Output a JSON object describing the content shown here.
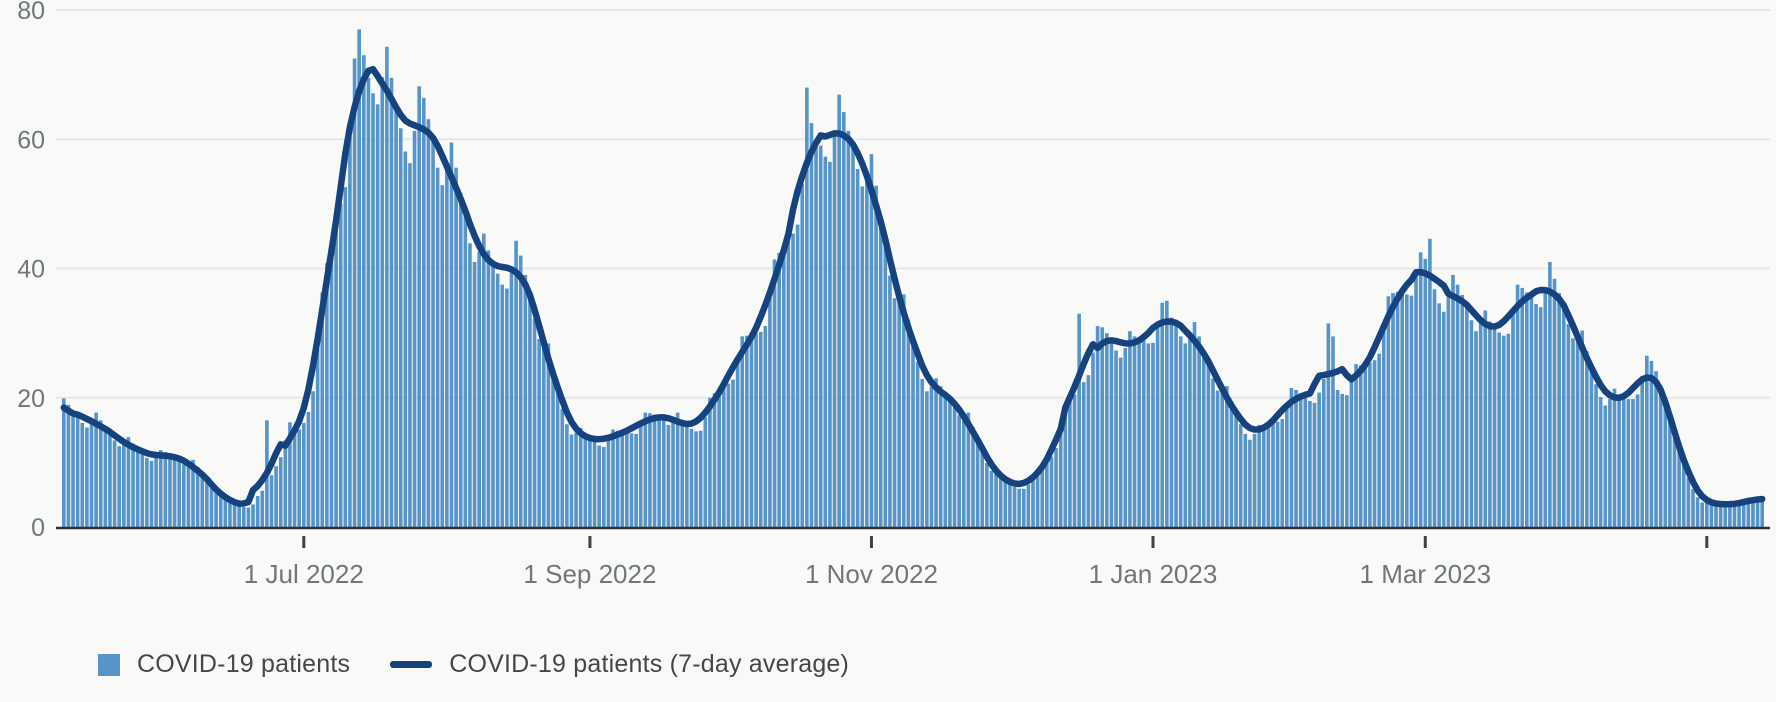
{
  "chart_data": {
    "type": "bar+line",
    "title": "",
    "xlabel": "",
    "ylabel": "",
    "ylim": [
      0,
      80
    ],
    "y_ticks": [
      0,
      20,
      40,
      60,
      80
    ],
    "grid": "horizontal",
    "legend_position": "bottom-left",
    "start_date": "2022-05-10",
    "x_ticks": [
      {
        "day": 52,
        "label": "1 Jul 2022"
      },
      {
        "day": 114,
        "label": "1 Sep 2022"
      },
      {
        "day": 175,
        "label": "1 Nov 2022"
      },
      {
        "day": 236,
        "label": "1 Jan 2023"
      },
      {
        "day": 295,
        "label": "1 Mar 2023"
      },
      {
        "day": 356,
        "label": ""
      }
    ],
    "series": [
      {
        "name": "COVID-19 patients",
        "type": "bar",
        "color": "#5694CA"
      },
      {
        "name": "COVID-19 patients (7-day average)",
        "type": "line",
        "color": "#16437E",
        "derivation": "7-day centered average of daily values"
      }
    ],
    "daily": [
      19.9,
      18.9,
      17.9,
      17.2,
      16.1,
      15.4,
      16.3,
      17.7,
      16.5,
      15.4,
      14.4,
      13.4,
      12.5,
      13.1,
      13.9,
      12.9,
      12.0,
      11.3,
      10.7,
      10.2,
      11.0,
      11.9,
      11.6,
      11.3,
      10.9,
      10.2,
      9.7,
      10.0,
      10.4,
      9.3,
      8.2,
      7.2,
      6.2,
      5.4,
      5.1,
      4.6,
      4.0,
      3.6,
      3.5,
      3.1,
      3.0,
      3.5,
      4.8,
      5.6,
      16.5,
      8.0,
      9.4,
      10.8,
      13.4,
      16.2,
      15.2,
      15.1,
      16.1,
      17.8,
      21.0,
      27.7,
      36.3,
      40.8,
      44.2,
      47.8,
      50.0,
      52.6,
      60.4,
      72.5,
      77.0,
      73.0,
      69.5,
      67.1,
      65.4,
      69.6,
      74.3,
      69.5,
      65.1,
      61.7,
      58.1,
      56.3,
      61.3,
      68.2,
      66.4,
      63.1,
      59.7,
      55.6,
      52.9,
      55.6,
      59.5,
      55.6,
      51.7,
      48.1,
      43.9,
      41.0,
      42.6,
      45.4,
      42.8,
      40.7,
      39.2,
      37.5,
      36.9,
      40.2,
      44.3,
      42.0,
      39.0,
      35.9,
      32.2,
      29.1,
      28.7,
      28.4,
      24.6,
      21.1,
      18.3,
      15.9,
      14.3,
      14.6,
      15.3,
      14.4,
      13.8,
      13.3,
      12.6,
      12.4,
      13.5,
      15.1,
      14.9,
      14.9,
      14.8,
      14.5,
      14.4,
      15.7,
      17.7,
      17.6,
      17.4,
      17.2,
      16.5,
      15.8,
      16.6,
      17.7,
      16.6,
      15.8,
      15.2,
      14.8,
      14.9,
      17.0,
      20.0,
      20.7,
      21.3,
      21.9,
      22.2,
      22.8,
      25.8,
      29.5,
      29.6,
      29.7,
      30.0,
      30.2,
      31.1,
      35.6,
      41.4,
      42.4,
      43.4,
      44.8,
      45.4,
      46.8,
      53.1,
      68.0,
      62.5,
      59.6,
      59.0,
      57.3,
      56.5,
      61.2,
      66.9,
      64.2,
      61.3,
      58.8,
      55.4,
      52.7,
      55.0,
      57.7,
      52.8,
      47.8,
      43.5,
      38.9,
      35.4,
      35.5,
      36.0,
      32.1,
      28.5,
      25.6,
      22.9,
      21.0,
      21.7,
      23.0,
      21.8,
      20.8,
      19.9,
      18.5,
      17.3,
      17.5,
      17.7,
      15.5,
      13.4,
      11.6,
      9.9,
      8.7,
      8.4,
      8.4,
      7.4,
      6.7,
      6.2,
      5.9,
      5.9,
      6.6,
      7.9,
      8.5,
      9.1,
      10.0,
      10.9,
      12.2,
      14.9,
      18.2,
      19.4,
      20.5,
      33.0,
      22.4,
      23.5,
      27.0,
      31.1,
      30.9,
      30.0,
      29.0,
      27.3,
      26.2,
      27.7,
      30.3,
      29.5,
      28.9,
      28.9,
      28.4,
      28.5,
      31.3,
      34.7,
      35.0,
      32.4,
      31.2,
      29.5,
      28.4,
      29.9,
      31.7,
      29.5,
      27.3,
      25.4,
      23.0,
      21.1,
      21.4,
      21.8,
      19.5,
      17.5,
      15.9,
      14.4,
      13.5,
      14.4,
      15.8,
      15.7,
      15.8,
      16.1,
      16.3,
      16.7,
      18.9,
      21.5,
      21.2,
      20.7,
      20.3,
      19.5,
      19.2,
      20.8,
      22.9,
      31.5,
      29.5,
      21.2,
      20.6,
      20.4,
      22.5,
      25.2,
      25.0,
      25.0,
      25.4,
      25.8,
      26.8,
      30.8,
      35.7,
      36.2,
      36.4,
      36.6,
      36.0,
      35.8,
      38.9,
      42.5,
      41.5,
      44.6,
      36.8,
      34.6,
      33.3,
      35.6,
      39.0,
      37.5,
      35.9,
      34.2,
      32.0,
      30.3,
      31.6,
      33.5,
      31.8,
      30.6,
      30.1,
      29.6,
      29.9,
      33.4,
      37.5,
      37.0,
      36.3,
      35.7,
      34.5,
      34.0,
      36.8,
      41.0,
      38.4,
      36.2,
      34.1,
      31.4,
      29.2,
      29.7,
      30.4,
      27.2,
      24.3,
      22.1,
      20.1,
      18.8,
      19.8,
      21.4,
      20.5,
      19.9,
      19.8,
      19.8,
      20.5,
      23.4,
      26.5,
      25.7,
      24.1,
      22.0,
      19.1,
      16.3,
      14.9,
      13.2,
      10.1,
      7.6,
      5.9,
      4.6,
      3.8,
      3.8,
      3.9,
      3.7,
      3.5,
      3.4,
      3.3,
      3.3,
      3.6,
      4.0,
      4.0,
      4.3,
      4.6,
      4.4
    ]
  },
  "legend": {
    "bar_label": "COVID-19 patients",
    "line_label": "COVID-19 patients (7-day average)"
  },
  "colors": {
    "background": "#f9f9f8",
    "bar": "#5694CA",
    "line": "#16437E",
    "gridline": "#e8e7e5",
    "axis_line": "#2f3133",
    "tick": "#3d4347",
    "tick_label": "#6f777b",
    "legend_text": "#44474a"
  }
}
